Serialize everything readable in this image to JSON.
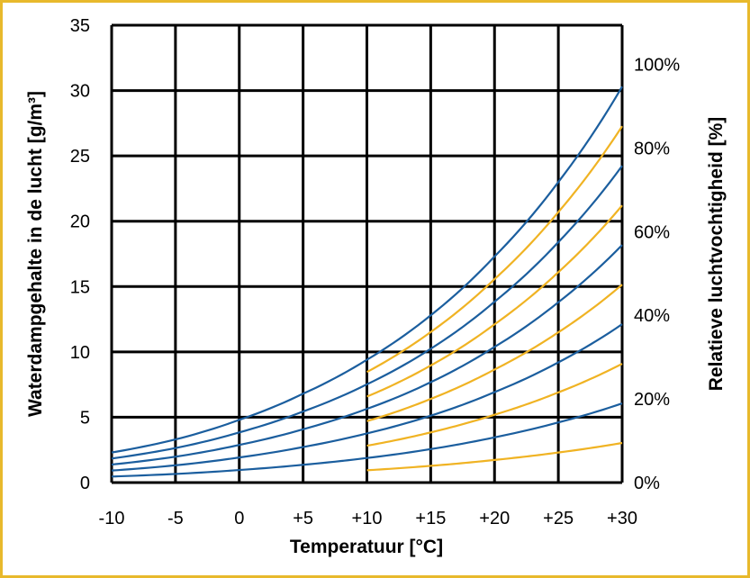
{
  "chart_data": {
    "type": "line",
    "title": "",
    "xlabel": "Temperatuur [°C]",
    "ylabel": "Waterdampgehalte in de lucht [g/m³]",
    "y2label": "Relatieve luchtvochtigheid [%]",
    "xlim": [
      -10,
      30
    ],
    "ylim": [
      0,
      35
    ],
    "x_ticks": [
      -10,
      -5,
      0,
      5,
      10,
      15,
      20,
      25,
      30
    ],
    "x_tick_labels": [
      "-10",
      "-5",
      "0",
      "+5",
      "+10",
      "+15",
      "+20",
      "+25",
      "+30"
    ],
    "y_ticks": [
      0,
      5,
      10,
      15,
      20,
      25,
      30,
      35
    ],
    "y_tick_labels": [
      "0",
      "5",
      "10",
      "15",
      "20",
      "25",
      "30",
      "35"
    ],
    "y2_tick_labels": [
      "0%",
      "20%",
      "40%",
      "60%",
      "80%",
      "100%"
    ],
    "y2_tick_values": [
      0,
      6.4,
      12.8,
      19.2,
      25.6,
      32
    ],
    "grid": true,
    "colors": {
      "blue": "#1b5e9e",
      "yellow": "#f0b323",
      "grid": "#000000",
      "frame": "#e8b92c"
    },
    "saturation_curve": {
      "x": [
        -10,
        -5,
        0,
        5,
        10,
        15,
        20,
        25,
        30
      ],
      "y": [
        2.3,
        3.3,
        4.8,
        6.8,
        9.4,
        12.8,
        17.3,
        23.0,
        30.3
      ]
    },
    "series": [
      {
        "name": "100%",
        "rh": 1.0,
        "color": "blue",
        "x_range": [
          -10,
          30
        ]
      },
      {
        "name": "90%",
        "rh": 0.9,
        "color": "yellow",
        "x_range": [
          10,
          30
        ]
      },
      {
        "name": "80%",
        "rh": 0.8,
        "color": "blue",
        "x_range": [
          -10,
          30
        ]
      },
      {
        "name": "70%",
        "rh": 0.7,
        "color": "yellow",
        "x_range": [
          10,
          30
        ]
      },
      {
        "name": "60%",
        "rh": 0.6,
        "color": "blue",
        "x_range": [
          -10,
          30
        ]
      },
      {
        "name": "50%",
        "rh": 0.5,
        "color": "yellow",
        "x_range": [
          10,
          30
        ]
      },
      {
        "name": "40%",
        "rh": 0.4,
        "color": "blue",
        "x_range": [
          -10,
          30
        ]
      },
      {
        "name": "30%",
        "rh": 0.3,
        "color": "yellow",
        "x_range": [
          10,
          30
        ]
      },
      {
        "name": "20%",
        "rh": 0.2,
        "color": "blue",
        "x_range": [
          -10,
          30
        ]
      },
      {
        "name": "10%",
        "rh": 0.1,
        "color": "yellow",
        "x_range": [
          10,
          30
        ]
      }
    ]
  }
}
